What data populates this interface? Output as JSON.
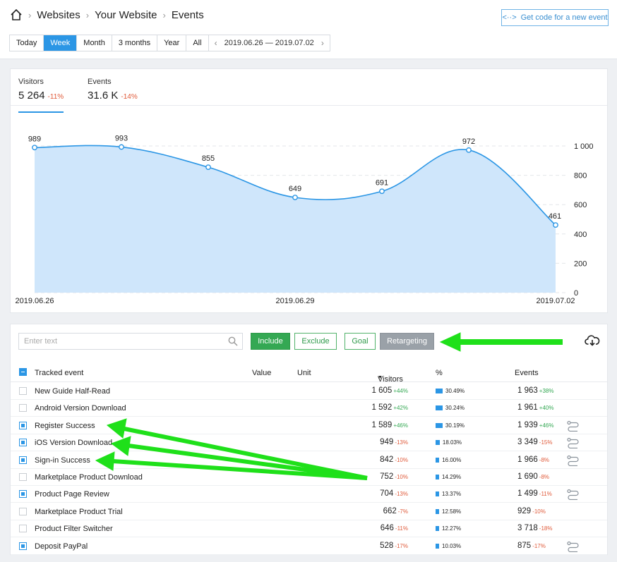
{
  "breadcrumb": {
    "items": [
      "Websites",
      "Your Website",
      "Events"
    ]
  },
  "get_code_label": "Get code for a new event",
  "periods": [
    "Today",
    "Week",
    "Month",
    "3 months",
    "Year",
    "All"
  ],
  "active_period": "Week",
  "date_range": "2019.06.26 — 2019.07.02",
  "metrics": [
    {
      "label": "Visitors",
      "value": "5 264",
      "delta": "-11%"
    },
    {
      "label": "Events",
      "value": "31.6 K",
      "delta": "-14%"
    }
  ],
  "chart_data": {
    "type": "area",
    "x": [
      "2019.06.26",
      "2019.06.27",
      "2019.06.28",
      "2019.06.29",
      "2019.06.30",
      "2019.07.01",
      "2019.07.02"
    ],
    "series": [
      {
        "values": [
          989,
          993,
          855,
          649,
          691,
          972,
          461
        ]
      }
    ],
    "x_tick_labels": [
      "2019.06.26",
      "2019.06.29",
      "2019.07.02"
    ],
    "y_ticks": [
      "1 000",
      "800",
      "600",
      "400",
      "200",
      "0"
    ],
    "ylim": [
      0,
      1000
    ],
    "grid": true,
    "color": "#2b96e5",
    "fill": "#cfe6fb"
  },
  "filters": {
    "search_placeholder": "Enter text",
    "include_label": "Include",
    "exclude_label": "Exclude",
    "goal_label": "Goal",
    "retargeting_label": "Retargeting"
  },
  "table": {
    "headers": {
      "event": "Tracked event",
      "value": "Value",
      "unit": "Unit",
      "visitors": "Visitors",
      "pct": "%",
      "events": "Events"
    },
    "rows": [
      {
        "name": "New Guide Half-Read",
        "checked": false,
        "visitors": "1 605",
        "vdelta": "+44%",
        "vdir": "up",
        "pct": "30.49%",
        "pct_num": 30.49,
        "events": "1 963",
        "edelta": "+38%",
        "edir": "up",
        "flow": false
      },
      {
        "name": "Android Version Download",
        "checked": false,
        "visitors": "1 592",
        "vdelta": "+42%",
        "vdir": "up",
        "pct": "30.24%",
        "pct_num": 30.24,
        "events": "1 961",
        "edelta": "+40%",
        "edir": "up",
        "flow": false
      },
      {
        "name": "Register Success",
        "checked": true,
        "visitors": "1 589",
        "vdelta": "+46%",
        "vdir": "up",
        "pct": "30.19%",
        "pct_num": 30.19,
        "events": "1 939",
        "edelta": "+46%",
        "edir": "up",
        "flow": true
      },
      {
        "name": "iOS Version Download",
        "checked": true,
        "visitors": "949",
        "vdelta": "-13%",
        "vdir": "dn",
        "pct": "18.03%",
        "pct_num": 18.03,
        "events": "3 349",
        "edelta": "-15%",
        "edir": "dn",
        "flow": true
      },
      {
        "name": "Sign-in Success",
        "checked": true,
        "visitors": "842",
        "vdelta": "-10%",
        "vdir": "dn",
        "pct": "16.00%",
        "pct_num": 16.0,
        "events": "1 966",
        "edelta": "-8%",
        "edir": "dn",
        "flow": true
      },
      {
        "name": "Marketplace Product Download",
        "checked": false,
        "visitors": "752",
        "vdelta": "-10%",
        "vdir": "dn",
        "pct": "14.29%",
        "pct_num": 14.29,
        "events": "1 690",
        "edelta": "-8%",
        "edir": "dn",
        "flow": false
      },
      {
        "name": "Product Page Review",
        "checked": true,
        "visitors": "704",
        "vdelta": "-13%",
        "vdir": "dn",
        "pct": "13.37%",
        "pct_num": 13.37,
        "events": "1 499",
        "edelta": "-11%",
        "edir": "dn",
        "flow": true
      },
      {
        "name": "Marketplace Product Trial",
        "checked": false,
        "visitors": "662",
        "vdelta": "-7%",
        "vdir": "dn",
        "pct": "12.58%",
        "pct_num": 12.58,
        "events": "929",
        "edelta": "-10%",
        "edir": "dn",
        "flow": false
      },
      {
        "name": "Product Filter Switcher",
        "checked": false,
        "visitors": "646",
        "vdelta": "-11%",
        "vdir": "dn",
        "pct": "12.27%",
        "pct_num": 12.27,
        "events": "3 718",
        "edelta": "-18%",
        "edir": "dn",
        "flow": false
      },
      {
        "name": "Deposit PayPal",
        "checked": true,
        "visitors": "528",
        "vdelta": "-17%",
        "vdir": "dn",
        "pct": "10.03%",
        "pct_num": 10.03,
        "events": "875",
        "edelta": "-17%",
        "edir": "dn",
        "flow": true
      }
    ]
  },
  "colors": {
    "accent": "#2b96e5",
    "positive": "#34a853",
    "negative": "#e05b3b",
    "annotation": "#1fe01a"
  }
}
